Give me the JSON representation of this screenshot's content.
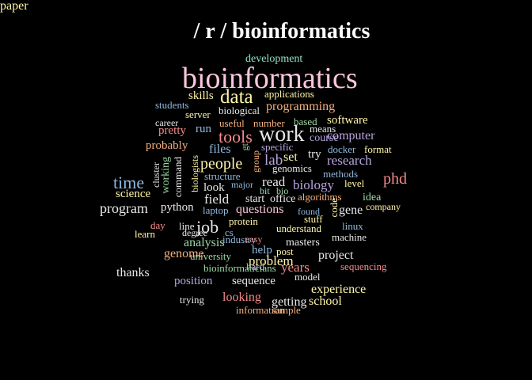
{
  "title": "/ r / bioinformatics",
  "colors": {
    "background": "#000000",
    "title": "#ffffff",
    "palette": [
      "#f9c6dc",
      "#e8e8e8",
      "#fff5a8",
      "#b9a6e0",
      "#f78a8a",
      "#f5b07f",
      "#9ed9a6",
      "#8fb8de"
    ]
  },
  "words": [
    {
      "text": "development",
      "size": 14,
      "color": "#8fe0c8"
    },
    {
      "text": "bioinformatics",
      "size": 38,
      "color": "#f9c6dc"
    },
    {
      "text": "skills",
      "size": 15,
      "color": "#fff5a8"
    },
    {
      "text": "data",
      "size": 25,
      "color": "#fff5a8"
    },
    {
      "text": "applications",
      "size": 13,
      "color": "#fff5a8"
    },
    {
      "text": "students",
      "size": 13,
      "color": "#8fb8de"
    },
    {
      "text": "biological",
      "size": 13,
      "color": "#e8e8e8"
    },
    {
      "text": "programming",
      "size": 16,
      "color": "#f5b07f"
    },
    {
      "text": "server",
      "size": 13,
      "color": "#fff5a8"
    },
    {
      "text": "career",
      "size": 12,
      "color": "#e8e8e8"
    },
    {
      "text": "useful",
      "size": 13,
      "color": "#f5b07f"
    },
    {
      "text": "number",
      "size": 13,
      "color": "#f5b07f"
    },
    {
      "text": "based",
      "size": 13,
      "color": "#9ed9a6"
    },
    {
      "text": "means",
      "size": 13,
      "color": "#e8e8e8"
    },
    {
      "text": "software",
      "size": 15,
      "color": "#fff5a8"
    },
    {
      "text": "pretty",
      "size": 15,
      "color": "#f78a8a"
    },
    {
      "text": "run",
      "size": 15,
      "color": "#8fb8de"
    },
    {
      "text": "tools",
      "size": 22,
      "color": "#f78a8a"
    },
    {
      "text": "work",
      "size": 28,
      "color": "#e8e8e8"
    },
    {
      "text": "course",
      "size": 14,
      "color": "#b9a6e0"
    },
    {
      "text": "computer",
      "size": 16,
      "color": "#b9a6e0"
    },
    {
      "text": "probably",
      "size": 15,
      "color": "#f5b07f"
    },
    {
      "text": "files",
      "size": 16,
      "color": "#8fb8de"
    },
    {
      "text": "gt",
      "size": 12,
      "color": "#9ed9a6"
    },
    {
      "text": "specific",
      "size": 13,
      "color": "#b9a6e0"
    },
    {
      "text": "docker",
      "size": 13,
      "color": "#8fb8de"
    },
    {
      "text": "format",
      "size": 13,
      "color": "#fff5a8"
    },
    {
      "text": "try",
      "size": 15,
      "color": "#e8e8e8"
    },
    {
      "text": "lab",
      "size": 19,
      "color": "#b9a6e0"
    },
    {
      "text": "set",
      "size": 16,
      "color": "#fff5a8"
    },
    {
      "text": "research",
      "size": 17,
      "color": "#b9a6e0"
    },
    {
      "text": "people",
      "size": 20,
      "color": "#fff5a8"
    },
    {
      "text": "genomics",
      "size": 13,
      "color": "#e8e8e8"
    },
    {
      "text": "cluster",
      "size": 12,
      "color": "#e8e8e8"
    },
    {
      "text": "working",
      "size": 14,
      "color": "#9ed9a6"
    },
    {
      "text": "command",
      "size": 13,
      "color": "#e8e8e8"
    },
    {
      "text": "biologists",
      "size": 12,
      "color": "#fff5a8"
    },
    {
      "text": "structure",
      "size": 13,
      "color": "#8fb8de"
    },
    {
      "text": "group",
      "size": 12,
      "color": "#f5b07f"
    },
    {
      "text": "methods",
      "size": 13,
      "color": "#8fb8de"
    },
    {
      "text": "time",
      "size": 22,
      "color": "#8fb8de"
    },
    {
      "text": "read",
      "size": 17,
      "color": "#e8e8e8"
    },
    {
      "text": "biology",
      "size": 17,
      "color": "#b9a6e0"
    },
    {
      "text": "level",
      "size": 13,
      "color": "#fff5a8"
    },
    {
      "text": "phd",
      "size": 20,
      "color": "#f78a8a"
    },
    {
      "text": "major",
      "size": 12,
      "color": "#8fb8de"
    },
    {
      "text": "look",
      "size": 15,
      "color": "#e8e8e8"
    },
    {
      "text": "bit",
      "size": 12,
      "color": "#8fe0c8"
    },
    {
      "text": "bio",
      "size": 12,
      "color": "#9ed9a6"
    },
    {
      "text": "science",
      "size": 15,
      "color": "#fff5a8"
    },
    {
      "text": "field",
      "size": 17,
      "color": "#e8e8e8"
    },
    {
      "text": "start",
      "size": 14,
      "color": "#e8e8e8"
    },
    {
      "text": "office",
      "size": 14,
      "color": "#e8e8e8"
    },
    {
      "text": "algorithms",
      "size": 13,
      "color": "#f5b07f"
    },
    {
      "text": "idea",
      "size": 14,
      "color": "#9ed9a6"
    },
    {
      "text": "code",
      "size": 13,
      "color": "#fff5a8"
    },
    {
      "text": "program",
      "size": 18,
      "color": "#e8e8e8"
    },
    {
      "text": "python",
      "size": 15,
      "color": "#e8e8e8"
    },
    {
      "text": "laptop",
      "size": 13,
      "color": "#8fb8de"
    },
    {
      "text": "questions",
      "size": 16,
      "color": "#f9c6dc"
    },
    {
      "text": "found",
      "size": 12,
      "color": "#8fb8de"
    },
    {
      "text": "gene",
      "size": 16,
      "color": "#e8e8e8"
    },
    {
      "text": "company",
      "size": 12,
      "color": "#fff5a8"
    },
    {
      "text": "stuff",
      "size": 13,
      "color": "#fff5a8"
    },
    {
      "text": "day",
      "size": 13,
      "color": "#f78a8a"
    },
    {
      "text": "line",
      "size": 13,
      "color": "#e8e8e8"
    },
    {
      "text": "job",
      "size": 22,
      "color": "#e8e8e8"
    },
    {
      "text": "protein",
      "size": 13,
      "color": "#fff5a8"
    },
    {
      "text": "linux",
      "size": 13,
      "color": "#8fb8de"
    },
    {
      "text": "learn",
      "size": 13,
      "color": "#fff5a8"
    },
    {
      "text": "degree",
      "size": 12,
      "color": "#e8e8e8"
    },
    {
      "text": "cs",
      "size": 13,
      "color": "#8fb8de"
    },
    {
      "text": "understand",
      "size": 13,
      "color": "#fff5a8"
    },
    {
      "text": "analysis",
      "size": 16,
      "color": "#9ed9a6"
    },
    {
      "text": "industry",
      "size": 13,
      "color": "#8fb8de"
    },
    {
      "text": "easy",
      "size": 12,
      "color": "#f78a8a"
    },
    {
      "text": "masters",
      "size": 14,
      "color": "#e8e8e8"
    },
    {
      "text": "machine",
      "size": 13,
      "color": "#e8e8e8"
    },
    {
      "text": "genome",
      "size": 16,
      "color": "#f5b07f"
    },
    {
      "text": "help",
      "size": 15,
      "color": "#8fb8de"
    },
    {
      "text": "post",
      "size": 13,
      "color": "#fff5a8"
    },
    {
      "text": "project",
      "size": 16,
      "color": "#e8e8e8"
    },
    {
      "text": "university",
      "size": 13,
      "color": "#9ed9a6"
    },
    {
      "text": "problem",
      "size": 17,
      "color": "#fff5a8"
    },
    {
      "text": "hard",
      "size": 13,
      "color": "#b9a6e0"
    },
    {
      "text": "years",
      "size": 17,
      "color": "#f78a8a"
    },
    {
      "text": "sequencing",
      "size": 13,
      "color": "#f78a8a"
    },
    {
      "text": "thanks",
      "size": 16,
      "color": "#e8e8e8"
    },
    {
      "text": "bioinformaticians",
      "size": 13,
      "color": "#9ed9a6"
    },
    {
      "text": "model",
      "size": 13,
      "color": "#e8e8e8"
    },
    {
      "text": "position",
      "size": 15,
      "color": "#b9a6e0"
    },
    {
      "text": "sequence",
      "size": 15,
      "color": "#e8e8e8"
    },
    {
      "text": "experience",
      "size": 16,
      "color": "#fff5a8"
    },
    {
      "text": "trying",
      "size": 13,
      "color": "#e8e8e8"
    },
    {
      "text": "looking",
      "size": 16,
      "color": "#f78a8a"
    },
    {
      "text": "getting",
      "size": 16,
      "color": "#e8e8e8"
    },
    {
      "text": "school",
      "size": 16,
      "color": "#fff5a8"
    },
    {
      "text": "information",
      "size": 13,
      "color": "#f5b07f"
    },
    {
      "text": "sample",
      "size": 13,
      "color": "#f5b07f"
    },
    {
      "text": "paper",
      "size": 16,
      "color": "#fff5a8"
    }
  ]
}
